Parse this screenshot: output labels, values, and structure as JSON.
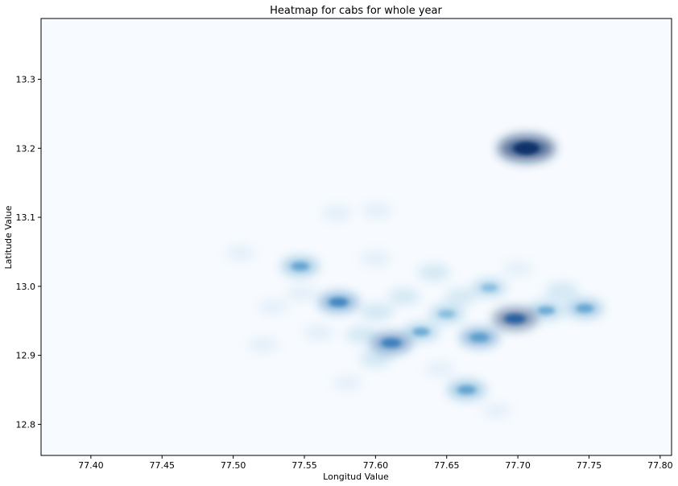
{
  "chart_data": {
    "type": "heatmap",
    "title": "Heatmap for cabs for whole year",
    "xlabel": "Longitud Value",
    "ylabel": "Latitude Value",
    "xlim": [
      77.365,
      77.808
    ],
    "ylim": [
      12.755,
      13.388
    ],
    "x_ticks": [
      "77.40",
      "77.45",
      "77.50",
      "77.55",
      "77.60",
      "77.65",
      "77.70",
      "77.75",
      "77.80"
    ],
    "y_ticks": [
      "12.8",
      "12.9",
      "13.0",
      "13.1",
      "13.2",
      "13.3"
    ],
    "colormap": [
      "#f7fbff",
      "#deebf7",
      "#c6dbef",
      "#9ecae1",
      "#6baed6",
      "#4292c6",
      "#2171b5",
      "#08519c",
      "#08306b"
    ],
    "grid": false,
    "hotspots": [
      {
        "lon": 77.706,
        "lat": 13.2,
        "intensity": 1.0
      },
      {
        "lon": 77.698,
        "lat": 12.953,
        "intensity": 0.55
      },
      {
        "lon": 77.611,
        "lat": 12.918,
        "intensity": 0.45
      },
      {
        "lon": 77.574,
        "lat": 12.977,
        "intensity": 0.42
      },
      {
        "lon": 77.673,
        "lat": 12.926,
        "intensity": 0.38
      },
      {
        "lon": 77.547,
        "lat": 13.029,
        "intensity": 0.32
      },
      {
        "lon": 77.664,
        "lat": 12.85,
        "intensity": 0.35
      },
      {
        "lon": 77.747,
        "lat": 12.968,
        "intensity": 0.3
      },
      {
        "lon": 77.72,
        "lat": 12.965,
        "intensity": 0.28
      },
      {
        "lon": 77.632,
        "lat": 12.934,
        "intensity": 0.28
      },
      {
        "lon": 77.65,
        "lat": 12.96,
        "intensity": 0.25
      },
      {
        "lon": 77.68,
        "lat": 12.998,
        "intensity": 0.22
      },
      {
        "lon": 77.731,
        "lat": 12.993,
        "intensity": 0.2
      },
      {
        "lon": 77.601,
        "lat": 12.963,
        "intensity": 0.2
      },
      {
        "lon": 77.641,
        "lat": 13.02,
        "intensity": 0.16
      },
      {
        "lon": 77.6,
        "lat": 12.895,
        "intensity": 0.16
      },
      {
        "lon": 77.573,
        "lat": 13.106,
        "intensity": 0.12
      },
      {
        "lon": 77.601,
        "lat": 13.11,
        "intensity": 0.12
      },
      {
        "lon": 77.521,
        "lat": 12.915,
        "intensity": 0.1
      },
      {
        "lon": 77.548,
        "lat": 12.99,
        "intensity": 0.12
      },
      {
        "lon": 77.6,
        "lat": 13.04,
        "intensity": 0.1
      },
      {
        "lon": 77.56,
        "lat": 12.933,
        "intensity": 0.12
      },
      {
        "lon": 77.59,
        "lat": 12.93,
        "intensity": 0.14
      },
      {
        "lon": 77.62,
        "lat": 12.985,
        "intensity": 0.14
      },
      {
        "lon": 77.66,
        "lat": 12.985,
        "intensity": 0.14
      },
      {
        "lon": 77.505,
        "lat": 13.048,
        "intensity": 0.08
      },
      {
        "lon": 77.528,
        "lat": 12.97,
        "intensity": 0.08
      },
      {
        "lon": 77.645,
        "lat": 12.88,
        "intensity": 0.08
      },
      {
        "lon": 77.685,
        "lat": 12.82,
        "intensity": 0.06
      },
      {
        "lon": 77.7,
        "lat": 13.025,
        "intensity": 0.06
      },
      {
        "lon": 77.58,
        "lat": 12.86,
        "intensity": 0.06
      }
    ]
  }
}
